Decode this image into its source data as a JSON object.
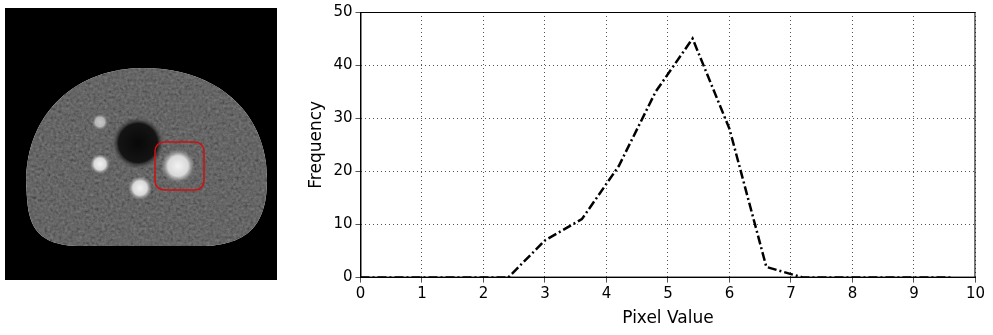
{
  "chart_data": {
    "type": "line",
    "x": [
      0,
      0.6,
      1.2,
      1.8,
      2.4,
      3.0,
      3.6,
      4.2,
      4.8,
      5.4,
      6.0,
      6.6,
      7.2,
      7.8,
      8.4,
      9.0,
      9.6
    ],
    "values": [
      0,
      0,
      0,
      0,
      0,
      7,
      11,
      21,
      35,
      45,
      28,
      2,
      0,
      0,
      0,
      0,
      0
    ],
    "color": "#000000",
    "line_style": "dashdot",
    "marker": "none",
    "xlabel": "Pixel Value",
    "ylabel": "Frequency",
    "xlim": [
      0,
      10
    ],
    "xticks": [
      0,
      1,
      2,
      3,
      4,
      5,
      6,
      7,
      8,
      9,
      10
    ],
    "ylim": [
      0,
      50
    ],
    "yticks": [
      0,
      10,
      20,
      30,
      40,
      50
    ],
    "grid": true
  }
}
